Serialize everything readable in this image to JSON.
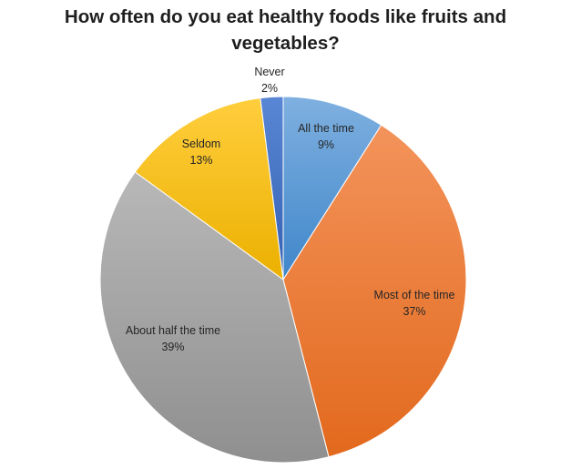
{
  "chart_data": {
    "type": "pie",
    "title_line1": "How often do you eat healthy foods like fruits and",
    "title_line2": "vegetables?",
    "slices": [
      {
        "label": "All the time",
        "value": 9,
        "value_label": "9%",
        "color": "#5B9BD5",
        "color_light": "#7FB0E0",
        "color_dark": "#3F86CA"
      },
      {
        "label": "Most of the time",
        "value": 37,
        "value_label": "37%",
        "color": "#ED7D31",
        "color_light": "#F3935B",
        "color_dark": "#E2691D"
      },
      {
        "label": "About half the time",
        "value": 39,
        "value_label": "39%",
        "color": "#A5A5A5",
        "color_light": "#B8B8B8",
        "color_dark": "#8F8F8F"
      },
      {
        "label": "Seldom",
        "value": 13,
        "value_label": "13%",
        "color": "#FFC000",
        "color_light": "#FFCE3D",
        "color_dark": "#EBB000"
      },
      {
        "label": "Never",
        "value": 2,
        "value_label": "2%",
        "color": "#4472C4",
        "color_light": "#5A86D6",
        "color_dark": "#3360B0"
      }
    ],
    "legend": "none",
    "label_position": "inside-or-outside-end"
  }
}
